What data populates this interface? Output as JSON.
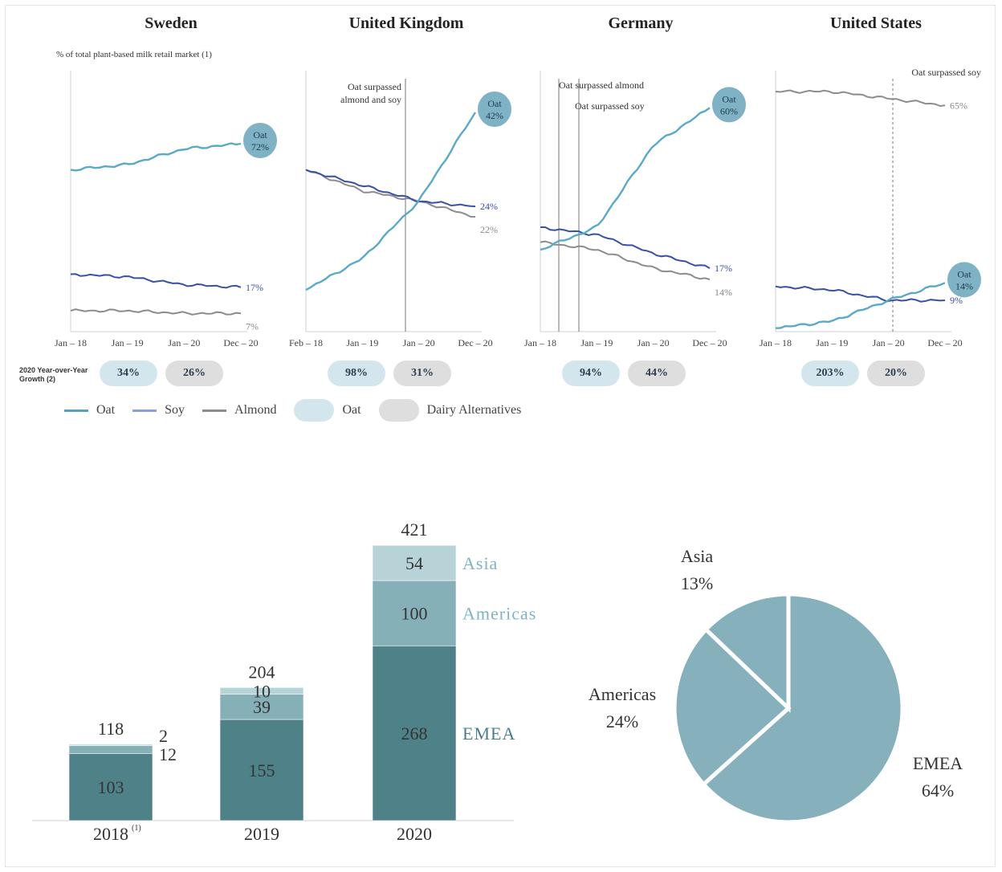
{
  "panels": [
    {
      "title": "Sweden",
      "subtitle": "% of total plant-based milk retail market (1)",
      "annotations": [],
      "x_ticks": [
        "Jan – 18",
        "Jan – 19",
        "Jan – 20",
        "Dec – 20"
      ],
      "oat_bubble": [
        "Oat",
        "72%"
      ],
      "end_labels": [
        {
          "series": "Soy",
          "text": "17%"
        },
        {
          "series": "Almond",
          "text": "7%"
        }
      ],
      "growth": {
        "oat": "34%",
        "dairy": "26%"
      }
    },
    {
      "title": "United Kingdom",
      "subtitle": "",
      "annotations": [
        "Oat surpassed",
        "almond and soy"
      ],
      "x_ticks": [
        "Feb – 18",
        "Jan – 19",
        "Jan – 20",
        "Dec – 20"
      ],
      "oat_bubble": [
        "Oat",
        "42%"
      ],
      "end_labels": [
        {
          "series": "Soy",
          "text": "24%"
        },
        {
          "series": "Almond",
          "text": "22%"
        }
      ],
      "growth": {
        "oat": "98%",
        "dairy": "31%"
      }
    },
    {
      "title": "Germany",
      "subtitle": "",
      "annotations": [
        "Oat surpassed almond",
        "Oat surpassed soy"
      ],
      "x_ticks": [
        "Jan – 18",
        "Jan – 19",
        "Jan – 20",
        "Dec – 20"
      ],
      "oat_bubble": [
        "Oat",
        "60%"
      ],
      "end_labels": [
        {
          "series": "Soy",
          "text": "17%"
        },
        {
          "series": "Almond",
          "text": "14%"
        }
      ],
      "growth": {
        "oat": "94%",
        "dairy": "44%"
      }
    },
    {
      "title": "United States",
      "subtitle": "",
      "annotations": [
        "Oat surpassed soy"
      ],
      "x_ticks": [
        "Jan – 18",
        "Jan – 19",
        "Jan – 20",
        "Dec – 20"
      ],
      "oat_bubble": [
        "Oat",
        "14%"
      ],
      "end_labels": [
        {
          "series": "Almond",
          "text": "65%"
        },
        {
          "series": "Soy",
          "text": "9%"
        }
      ],
      "growth": {
        "oat": "203%",
        "dairy": "20%"
      }
    }
  ],
  "growth_row_label": "2020 Year-over-Year Growth (2)",
  "legend": [
    {
      "label": "Oat",
      "kind": "line",
      "color": "#5b9fbf"
    },
    {
      "label": "Soy",
      "kind": "line",
      "color": "#8aa0d8"
    },
    {
      "label": "Almond",
      "kind": "line",
      "color": "#8c8c8c"
    },
    {
      "label": "Oat",
      "kind": "blob",
      "color": "#d3e6ee"
    },
    {
      "label": "Dairy Alternatives",
      "kind": "blob",
      "color": "#dedede"
    }
  ],
  "colors": {
    "oat": "#5ba9c6",
    "soy": "#3a4fa6",
    "almond": "#8c8c8c",
    "emea": "#4f8189",
    "americas": "#86b0b8",
    "asia": "#b8d3d8",
    "pie": "#86b0bb"
  },
  "chart_data": [
    {
      "type": "line",
      "title": "Sweden",
      "subtitle": "% of total plant-based milk retail market (1)",
      "x": [
        "Jan – 18",
        "Jan – 19",
        "Jan – 20",
        "Dec – 20"
      ],
      "ylim": [
        0,
        100
      ],
      "series": [
        {
          "name": "Oat",
          "values": [
            62,
            64,
            70,
            72
          ]
        },
        {
          "name": "Soy",
          "values": [
            22,
            21,
            18,
            17
          ]
        },
        {
          "name": "Almond",
          "values": [
            8,
            8,
            7,
            7
          ]
        }
      ]
    },
    {
      "type": "line",
      "title": "United Kingdom",
      "x": [
        "Feb – 18",
        "Jan – 19",
        "Jan – 20",
        "Dec – 20"
      ],
      "ylim": [
        0,
        50
      ],
      "series": [
        {
          "name": "Oat",
          "values": [
            8,
            14,
            25,
            42
          ]
        },
        {
          "name": "Soy",
          "values": [
            31,
            28,
            25,
            24
          ]
        },
        {
          "name": "Almond",
          "values": [
            31,
            27,
            25,
            22
          ]
        }
      ]
    },
    {
      "type": "line",
      "title": "Germany",
      "x": [
        "Jan – 18",
        "Jan – 19",
        "Jan – 20",
        "Dec – 20"
      ],
      "ylim": [
        0,
        70
      ],
      "series": [
        {
          "name": "Oat",
          "values": [
            22,
            28,
            50,
            60
          ]
        },
        {
          "name": "Soy",
          "values": [
            28,
            26,
            21,
            17
          ]
        },
        {
          "name": "Almond",
          "values": [
            24,
            22,
            17,
            14
          ]
        }
      ]
    },
    {
      "type": "line",
      "title": "United States",
      "x": [
        "Jan – 18",
        "Jan – 19",
        "Jan – 20",
        "Dec – 20"
      ],
      "ylim": [
        0,
        75
      ],
      "series": [
        {
          "name": "Oat",
          "values": [
            1,
            3,
            9,
            14
          ]
        },
        {
          "name": "Soy",
          "values": [
            13,
            12,
            9,
            9
          ]
        },
        {
          "name": "Almond",
          "values": [
            69,
            69,
            67,
            65
          ]
        }
      ]
    },
    {
      "type": "bar",
      "stacked": true,
      "categories": [
        "2018",
        "2019",
        "2020"
      ],
      "category_notes": [
        "(1)",
        "",
        ""
      ],
      "totals": [
        118,
        204,
        421
      ],
      "series": [
        {
          "name": "EMEA",
          "values": [
            103,
            155,
            268
          ]
        },
        {
          "name": "Americas",
          "values": [
            12,
            39,
            100
          ]
        },
        {
          "name": "Asia",
          "values": [
            2,
            10,
            54
          ]
        }
      ]
    },
    {
      "type": "pie",
      "slices": [
        {
          "label": "EMEA",
          "value": 64
        },
        {
          "label": "Americas",
          "value": 24
        },
        {
          "label": "Asia",
          "value": 13
        }
      ]
    }
  ]
}
